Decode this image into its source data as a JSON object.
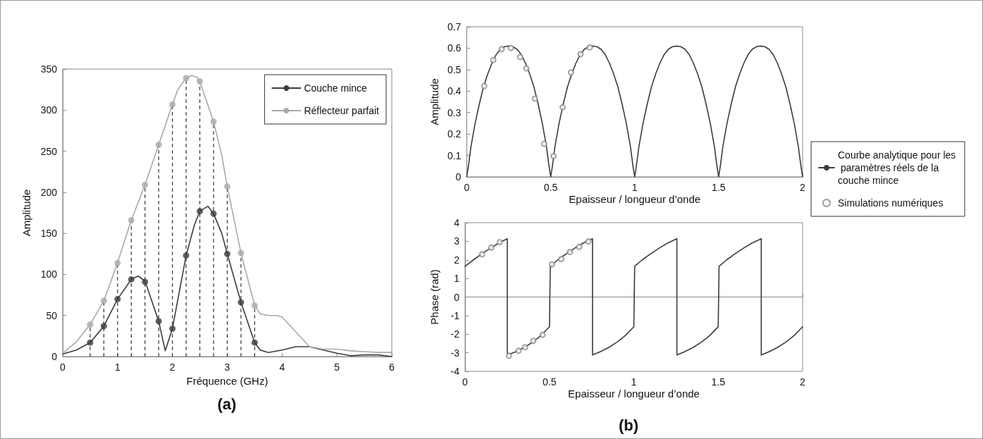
{
  "chart_data": [
    {
      "type": "line",
      "xlabel": "Fréquence (GHz)",
      "ylabel": "Amplitude",
      "xlim": [
        0,
        6
      ],
      "xticks": [
        0,
        1,
        2,
        3,
        4,
        5,
        6
      ],
      "ylim": [
        0,
        350
      ],
      "yticks": [
        0,
        50,
        100,
        150,
        200,
        250,
        300,
        350
      ],
      "legend": "top right",
      "annotations": [
        "(a)"
      ],
      "series": [
        {
          "type": "lollipop",
          "color": "#a9a9a9",
          "marker": "circle",
          "line_style": "dashed",
          "x": [
            0.5,
            0.75,
            1,
            1.25,
            1.5,
            1.75,
            2,
            2.25,
            2.5,
            2.75,
            3,
            3.25,
            3.5
          ],
          "values": [
            39,
            68,
            114,
            166,
            209,
            258,
            307,
            339,
            335,
            286,
            207,
            126,
            62
          ]
        },
        {
          "name": "Couche mince",
          "color": "#3c3c3c",
          "marker": "none",
          "x": [
            0,
            0.25,
            0.5,
            0.75,
            1,
            1.25,
            1.375,
            1.5,
            1.75,
            1.87,
            2,
            2.25,
            2.4,
            2.5,
            2.65,
            2.75,
            2.9,
            3,
            3.25,
            3.5,
            3.6,
            3.75,
            4,
            4.25,
            4.5,
            4.75,
            5,
            5.25,
            5.5,
            5.75,
            6
          ],
          "values": [
            3,
            8,
            17,
            37,
            70,
            94,
            98,
            92,
            43,
            7,
            34,
            123,
            160,
            177,
            183,
            174,
            150,
            125,
            66,
            17,
            8,
            5,
            8,
            12,
            12,
            8,
            4,
            1,
            2,
            2,
            0
          ]
        },
        {
          "name": "Réflecteur parfait",
          "color": "#a9a9a9",
          "marker": "none",
          "x": [
            0,
            0.25,
            0.5,
            0.75,
            1,
            1.25,
            1.5,
            1.75,
            2,
            2.1,
            2.25,
            2.35,
            2.45,
            2.5,
            2.75,
            2.9,
            3,
            3.25,
            3.5,
            3.6,
            3.75,
            3.9,
            4,
            4.25,
            4.5,
            4.75,
            5,
            5.25,
            5.5,
            5.75,
            6
          ],
          "values": [
            4,
            18,
            39,
            68,
            114,
            166,
            209,
            258,
            307,
            325,
            339,
            342,
            340,
            335,
            286,
            245,
            207,
            126,
            62,
            52,
            50,
            50,
            48,
            30,
            12,
            9,
            9,
            7,
            6,
            5,
            5
          ]
        },
        {
          "type": "scatter",
          "color": "#3c3c3c",
          "marker": "circle",
          "x": [
            0.5,
            0.75,
            1,
            1.25,
            1.5,
            1.75,
            2,
            2.25,
            2.5,
            2.75,
            3,
            3.25,
            3.5
          ],
          "values": [
            17,
            37,
            70,
            94,
            91,
            43,
            34,
            123,
            177,
            174,
            125,
            66,
            17
          ]
        }
      ]
    },
    {
      "type": "line",
      "xlabel": "Epaisseur / longueur d’onde",
      "ylabel": "Amplitude",
      "xlim": [
        0,
        2
      ],
      "xticks": [
        0,
        0.5,
        1,
        1.5,
        2
      ],
      "ylim": [
        0,
        0.7
      ],
      "yticks": [
        0,
        0.1,
        0.2,
        0.3,
        0.4,
        0.5,
        0.6,
        0.7
      ],
      "legend": "right",
      "series": [
        {
          "name": "Courbe analytique pour les paramètres réels de la couche mince",
          "color": "#3c3c3c",
          "marker": "none",
          "x": [
            0,
            0.01,
            0.025,
            0.05,
            0.075,
            0.1,
            0.125,
            0.15,
            0.175,
            0.2,
            0.225,
            0.25,
            0.275,
            0.3,
            0.325,
            0.35,
            0.375,
            0.4,
            0.425,
            0.45,
            0.475,
            0.49,
            0.5,
            0.51,
            0.525,
            0.55,
            0.575,
            0.6,
            0.625,
            0.65,
            0.675,
            0.7,
            0.725,
            0.75,
            0.775,
            0.8,
            0.825,
            0.85,
            0.875,
            0.9,
            0.925,
            0.95,
            0.975,
            0.99,
            1,
            1.01,
            1.025,
            1.05,
            1.075,
            1.1,
            1.125,
            1.15,
            1.175,
            1.2,
            1.225,
            1.25,
            1.275,
            1.3,
            1.325,
            1.35,
            1.375,
            1.4,
            1.425,
            1.45,
            1.475,
            1.49,
            1.5,
            1.51,
            1.525,
            1.55,
            1.575,
            1.6,
            1.625,
            1.65,
            1.675,
            1.7,
            1.725,
            1.75,
            1.775,
            1.8,
            1.825,
            1.85,
            1.875,
            1.9,
            1.925,
            1.95,
            1.975,
            1.99,
            2
          ],
          "values": [
            0,
            0.05,
            0.14,
            0.25,
            0.34,
            0.42,
            0.48,
            0.53,
            0.57,
            0.595,
            0.607,
            0.61,
            0.607,
            0.595,
            0.57,
            0.53,
            0.48,
            0.42,
            0.34,
            0.25,
            0.14,
            0.05,
            0,
            0.05,
            0.14,
            0.25,
            0.34,
            0.42,
            0.48,
            0.53,
            0.57,
            0.595,
            0.607,
            0.61,
            0.607,
            0.595,
            0.57,
            0.53,
            0.48,
            0.42,
            0.34,
            0.25,
            0.14,
            0.05,
            0,
            0.05,
            0.14,
            0.25,
            0.34,
            0.42,
            0.48,
            0.53,
            0.57,
            0.595,
            0.607,
            0.61,
            0.607,
            0.595,
            0.57,
            0.53,
            0.48,
            0.42,
            0.34,
            0.25,
            0.14,
            0.05,
            0,
            0.05,
            0.14,
            0.25,
            0.34,
            0.42,
            0.48,
            0.53,
            0.57,
            0.595,
            0.607,
            0.61,
            0.607,
            0.595,
            0.57,
            0.53,
            0.48,
            0.42,
            0.34,
            0.25,
            0.14,
            0.05,
            0
          ]
        },
        {
          "type": "scatter",
          "name": "Simulations numériques",
          "color": "#8a8a8a",
          "marker": "circle",
          "x": [
            0.104,
            0.158,
            0.208,
            0.263,
            0.318,
            0.355,
            0.406,
            0.461,
            0.517,
            0.571,
            0.621,
            0.678,
            0.733
          ],
          "values": [
            0.424,
            0.545,
            0.596,
            0.601,
            0.559,
            0.506,
            0.365,
            0.154,
            0.097,
            0.325,
            0.487,
            0.572,
            0.604
          ]
        }
      ]
    },
    {
      "type": "line",
      "xlabel": "Epaisseur / longueur d’onde",
      "ylabel": "Phase (rad)",
      "xlim": [
        0,
        2
      ],
      "xticks": [
        0,
        0.5,
        1,
        1.5,
        2
      ],
      "ylim": [
        -4,
        4
      ],
      "yticks": [
        -4,
        -3,
        -2,
        -1,
        0,
        1,
        2,
        3,
        4
      ],
      "annotations": [
        "(b)"
      ],
      "series": [
        {
          "color": "#3c3c3c",
          "marker": "none",
          "x": [
            0,
            0.05,
            0.1,
            0.15,
            0.2,
            0.25,
            0.25,
            0.3,
            0.35,
            0.4,
            0.45,
            0.5,
            0.505,
            0.55,
            0.6,
            0.65,
            0.7,
            0.755,
            0.755,
            0.8,
            0.85,
            0.9,
            0.95,
            1,
            1.005,
            1.05,
            1.1,
            1.15,
            1.2,
            1.255,
            1.255,
            1.3,
            1.35,
            1.4,
            1.45,
            1.5,
            1.505,
            1.55,
            1.6,
            1.65,
            1.7,
            1.755,
            1.755,
            1.8,
            1.85,
            1.9,
            1.95,
            2
          ],
          "values": [
            1.65,
            2,
            2.33,
            2.63,
            2.9,
            3.14,
            -3.12,
            -2.95,
            -2.72,
            -2.43,
            -2.07,
            -1.6,
            1.65,
            2,
            2.33,
            2.63,
            2.9,
            3.14,
            -3.12,
            -2.95,
            -2.72,
            -2.43,
            -2.07,
            -1.6,
            1.65,
            2,
            2.33,
            2.63,
            2.9,
            3.14,
            -3.12,
            -2.95,
            -2.72,
            -2.43,
            -2.07,
            -1.6,
            1.65,
            2,
            2.33,
            2.63,
            2.9,
            3.14,
            -3.12,
            -2.95,
            -2.72,
            -2.43,
            -2.07,
            -1.6
          ]
        },
        {
          "type": "scatter",
          "color": "#8a8a8a",
          "marker": "circle",
          "x": [
            0.101,
            0.155,
            0.205,
            0.26,
            0.317,
            0.355,
            0.404,
            0.459,
            0.515,
            0.57,
            0.621,
            0.676,
            0.731
          ],
          "values": [
            2.3,
            2.66,
            2.95,
            -3.16,
            -2.89,
            -2.7,
            -2.36,
            -2.03,
            1.76,
            2.05,
            2.42,
            2.7,
            2.99
          ]
        }
      ]
    }
  ]
}
